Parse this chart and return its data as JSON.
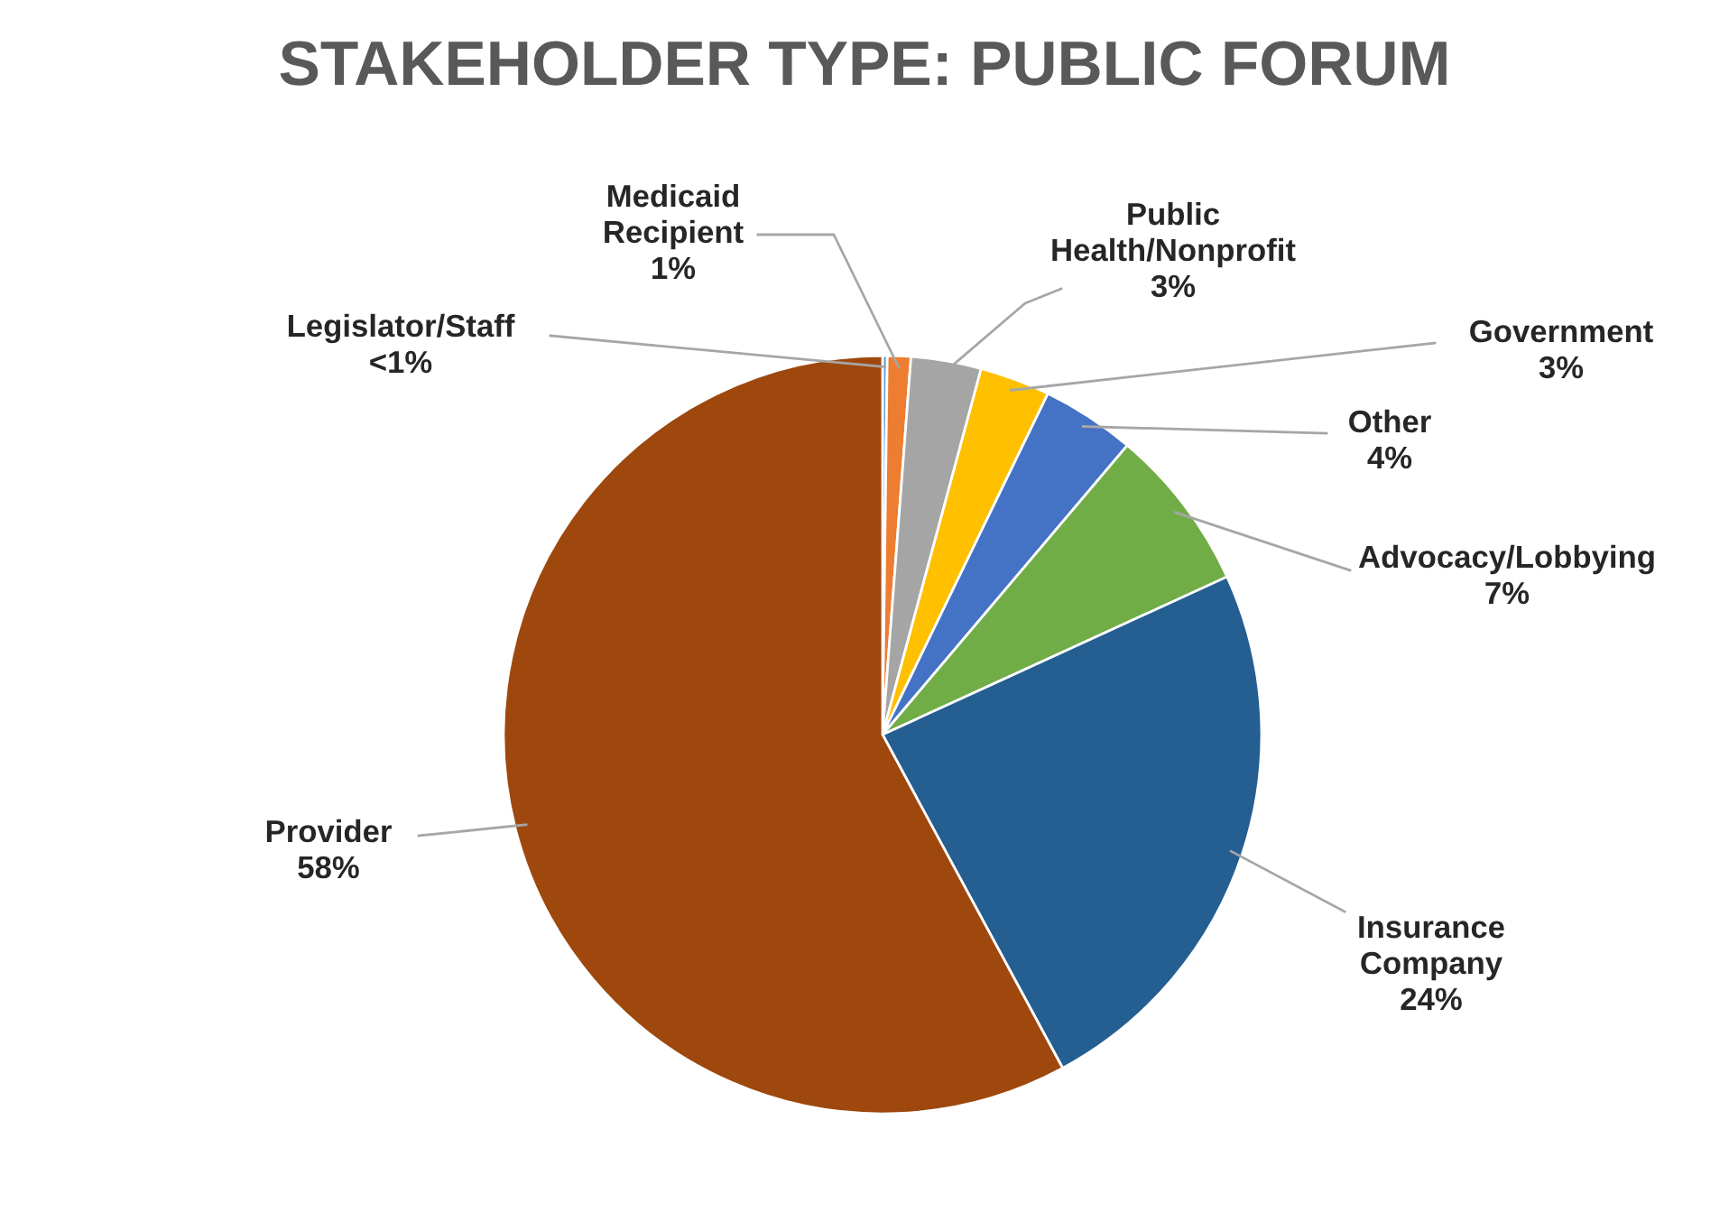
{
  "chart_data": {
    "type": "pie",
    "title": "STAKEHOLDER TYPE: PUBLIC FORUM",
    "categories": [
      "Legislator/Staff",
      "Medicaid\nRecipient",
      "Public\nHealth/Nonprofit",
      "Government",
      "Other",
      "Advocacy/Lobbying",
      "Insurance\nCompany",
      "Provider"
    ],
    "values": [
      0.2,
      1,
      3,
      3,
      4,
      7,
      24,
      58
    ],
    "value_labels": [
      "<1%",
      "1%",
      "3%",
      "3%",
      "4%",
      "7%",
      "24%",
      "58%"
    ],
    "colors": [
      "#5b9bd5",
      "#ed7d31",
      "#a5a5a5",
      "#ffc000",
      "#4472c4",
      "#70ad47",
      "#255e91",
      "#9e480e"
    ]
  }
}
